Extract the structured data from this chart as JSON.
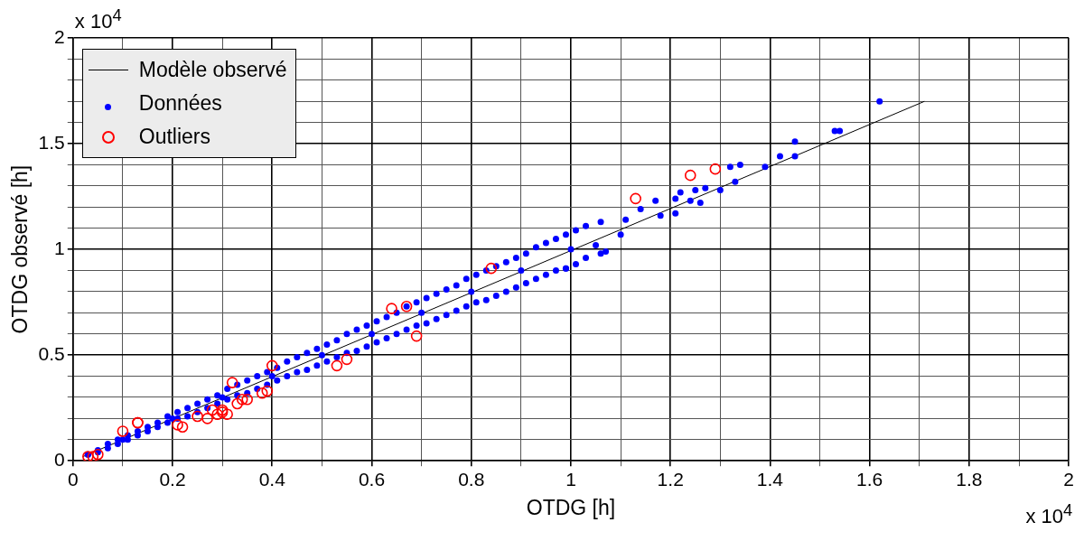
{
  "chart_data": {
    "type": "scatter",
    "xlabel": "OTDG [h]",
    "ylabel": "OTDG observé [h]",
    "annotations": [
      "x 10$^{4}$",
      "x 10$^{4}$"
    ],
    "xlim": [
      0,
      2
    ],
    "ylim": [
      0,
      2
    ],
    "xticks": [
      0,
      {
        "value": 0.1,
        "label": null
      },
      0.2,
      {
        "value": 0.3,
        "label": null
      },
      0.4,
      {
        "value": 0.5,
        "label": null
      },
      0.6,
      {
        "value": 0.7,
        "label": null
      },
      0.8,
      {
        "value": 0.9,
        "label": null
      },
      1,
      {
        "value": 1.1,
        "label": null
      },
      1.2,
      {
        "value": 1.3,
        "label": null
      },
      1.4,
      {
        "value": 1.5,
        "label": null
      },
      1.6,
      {
        "value": 1.7,
        "label": null
      },
      1.8,
      {
        "value": 1.9,
        "label": null
      },
      2
    ],
    "yticks": [
      0,
      {
        "value": 0.1,
        "label": null
      },
      {
        "value": 0.2,
        "label": null
      },
      {
        "value": 0.3,
        "label": null
      },
      {
        "value": 0.4,
        "label": null
      },
      0.5,
      {
        "value": 0.6,
        "label": null
      },
      {
        "value": 0.7,
        "label": null
      },
      {
        "value": 0.8,
        "label": null
      },
      {
        "value": 0.9,
        "label": null
      },
      1,
      {
        "value": 1.1,
        "label": null
      },
      {
        "value": 1.2,
        "label": null
      },
      {
        "value": 1.3,
        "label": null
      },
      {
        "value": 1.4,
        "label": null
      },
      1.5,
      {
        "value": 1.6,
        "label": null
      },
      {
        "value": 1.7,
        "label": null
      },
      {
        "value": 1.8,
        "label": null
      },
      {
        "value": 1.9,
        "label": null
      },
      2
    ],
    "grid": true,
    "legend": "top left",
    "series": [
      {
        "name": "Modèle observé",
        "type": "line",
        "color": "#000000",
        "marker": "none",
        "line_style": "solid",
        "x": [
          0.02,
          1.71
        ],
        "values": [
          0.02,
          1.7
        ]
      },
      {
        "name": "Données",
        "type": "scatter",
        "color": "#0000ff",
        "marker": "circle",
        "x": [
          0.03,
          0.03,
          0.05,
          0.05,
          0.07,
          0.07,
          0.09,
          0.09,
          0.11,
          0.11,
          0.13,
          0.13,
          0.15,
          0.15,
          0.17,
          0.17,
          0.19,
          0.19,
          0.21,
          0.21,
          0.23,
          0.23,
          0.25,
          0.25,
          0.27,
          0.27,
          0.29,
          0.29,
          0.31,
          0.31,
          0.33,
          0.33,
          0.35,
          0.35,
          0.37,
          0.37,
          0.39,
          0.39,
          0.41,
          0.41,
          0.43,
          0.43,
          0.45,
          0.45,
          0.47,
          0.47,
          0.49,
          0.49,
          0.51,
          0.51,
          0.53,
          0.53,
          0.55,
          0.55,
          0.57,
          0.57,
          0.59,
          0.59,
          0.61,
          0.61,
          0.63,
          0.63,
          0.65,
          0.65,
          0.67,
          0.67,
          0.69,
          0.69,
          0.71,
          0.71,
          0.73,
          0.73,
          0.75,
          0.75,
          0.77,
          0.77,
          0.79,
          0.79,
          0.81,
          0.81,
          0.83,
          0.83,
          0.85,
          0.85,
          0.87,
          0.87,
          0.89,
          0.89,
          0.91,
          0.91,
          0.93,
          0.93,
          0.95,
          0.95,
          0.97,
          0.97,
          0.99,
          0.99,
          1.01,
          1.01,
          1.03,
          1.03,
          1.06,
          1.06,
          0.1,
          0.2,
          0.3,
          0.4,
          0.5,
          0.6,
          0.7,
          0.8,
          0.9,
          1.0,
          0.99,
          1.07,
          1.1,
          1.05,
          1.11,
          1.14,
          1.17,
          1.18,
          1.21,
          1.22,
          1.21,
          1.25,
          1.24,
          1.26,
          1.27,
          1.3,
          1.32,
          1.34,
          1.33,
          1.39,
          1.42,
          1.45,
          1.45,
          1.53,
          1.54,
          1.62
        ],
        "values": [
          0.03,
          0.03,
          0.05,
          0.04,
          0.08,
          0.06,
          0.1,
          0.08,
          0.12,
          0.1,
          0.14,
          0.12,
          0.16,
          0.14,
          0.18,
          0.16,
          0.21,
          0.18,
          0.23,
          0.2,
          0.25,
          0.21,
          0.27,
          0.23,
          0.29,
          0.25,
          0.31,
          0.27,
          0.34,
          0.29,
          0.36,
          0.31,
          0.38,
          0.32,
          0.4,
          0.34,
          0.42,
          0.36,
          0.44,
          0.38,
          0.47,
          0.4,
          0.49,
          0.42,
          0.51,
          0.43,
          0.53,
          0.45,
          0.55,
          0.47,
          0.57,
          0.49,
          0.6,
          0.51,
          0.62,
          0.52,
          0.64,
          0.54,
          0.66,
          0.56,
          0.68,
          0.58,
          0.7,
          0.6,
          0.73,
          0.62,
          0.75,
          0.64,
          0.77,
          0.65,
          0.79,
          0.67,
          0.81,
          0.69,
          0.83,
          0.71,
          0.86,
          0.73,
          0.88,
          0.75,
          0.9,
          0.76,
          0.92,
          0.78,
          0.94,
          0.8,
          0.96,
          0.82,
          0.98,
          0.84,
          1.01,
          0.86,
          1.03,
          0.88,
          1.05,
          0.9,
          1.07,
          0.91,
          1.09,
          0.93,
          1.11,
          0.96,
          1.13,
          0.98,
          0.1,
          0.2,
          0.3,
          0.4,
          0.5,
          0.6,
          0.7,
          0.8,
          0.9,
          1.0,
          0.91,
          0.99,
          1.07,
          1.02,
          1.14,
          1.19,
          1.23,
          1.16,
          1.24,
          1.27,
          1.17,
          1.28,
          1.23,
          1.22,
          1.29,
          1.28,
          1.39,
          1.4,
          1.32,
          1.39,
          1.44,
          1.51,
          1.44,
          1.56,
          1.56,
          1.7
        ]
      },
      {
        "name": "Outliers",
        "type": "scatter",
        "color": "#ff0000",
        "marker": "circle",
        "x": [
          0.03,
          0.04,
          0.05,
          0.1,
          0.13,
          0.13,
          0.21,
          0.22,
          0.25,
          0.27,
          0.28,
          0.29,
          0.3,
          0.3,
          0.31,
          0.32,
          0.33,
          0.34,
          0.35,
          0.38,
          0.39,
          0.4,
          0.53,
          0.55,
          0.64,
          0.67,
          0.69,
          0.84,
          1.13,
          1.24,
          1.29
        ],
        "values": [
          0.02,
          0.02,
          0.03,
          0.14,
          0.18,
          0.18,
          0.17,
          0.16,
          0.21,
          0.2,
          0.24,
          0.22,
          0.24,
          0.23,
          0.22,
          0.37,
          0.27,
          0.29,
          0.29,
          0.32,
          0.33,
          0.45,
          0.45,
          0.48,
          0.72,
          0.73,
          0.59,
          0.91,
          1.24,
          1.35,
          1.38
        ]
      }
    ]
  }
}
